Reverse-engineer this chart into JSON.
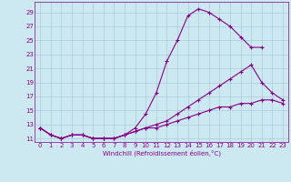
{
  "xlabel": "Windchill (Refroidissement éolien,°C)",
  "bg_color": "#cce8f0",
  "grid_color": "#aaccdd",
  "line_color": "#880088",
  "ylim": [
    10.5,
    30.5
  ],
  "xlim": [
    -0.5,
    23.5
  ],
  "yticks": [
    11,
    13,
    15,
    17,
    19,
    21,
    23,
    25,
    27,
    29
  ],
  "xticks": [
    0,
    1,
    2,
    3,
    4,
    5,
    6,
    7,
    8,
    9,
    10,
    11,
    12,
    13,
    14,
    15,
    16,
    17,
    18,
    19,
    20,
    21,
    22,
    23
  ],
  "line1_x": [
    0,
    1,
    2,
    3,
    4,
    5,
    6,
    7,
    8,
    9,
    10,
    11,
    12,
    13,
    14,
    15,
    16,
    17,
    18,
    19,
    20,
    21
  ],
  "line1_y": [
    12.5,
    11.5,
    11.0,
    11.5,
    11.5,
    11.0,
    11.0,
    11.0,
    11.5,
    12.5,
    14.5,
    17.5,
    22.0,
    25.0,
    28.5,
    29.5,
    29.0,
    28.0,
    27.0,
    25.5,
    24.0,
    24.0
  ],
  "line2_x": [
    0,
    1,
    2,
    3,
    4,
    5,
    6,
    7,
    8,
    9,
    10,
    11,
    12,
    13,
    14,
    15,
    16,
    17,
    18,
    19,
    20,
    21,
    22,
    23
  ],
  "line2_y": [
    12.5,
    11.5,
    11.0,
    11.5,
    11.5,
    11.0,
    11.0,
    11.0,
    11.5,
    12.0,
    12.5,
    13.0,
    13.5,
    14.5,
    15.5,
    16.5,
    17.5,
    18.5,
    19.5,
    20.5,
    21.5,
    19.0,
    17.5,
    16.5
  ],
  "line3_x": [
    0,
    1,
    2,
    3,
    4,
    5,
    6,
    7,
    8,
    9,
    10,
    11,
    12,
    13,
    14,
    15,
    16,
    17,
    18,
    19,
    20,
    21,
    22,
    23
  ],
  "line3_y": [
    12.5,
    11.5,
    11.0,
    11.5,
    11.5,
    11.0,
    11.0,
    11.0,
    11.5,
    12.0,
    12.5,
    12.5,
    13.0,
    13.5,
    14.0,
    14.5,
    15.0,
    15.5,
    15.5,
    16.0,
    16.0,
    16.5,
    16.5,
    16.0
  ]
}
